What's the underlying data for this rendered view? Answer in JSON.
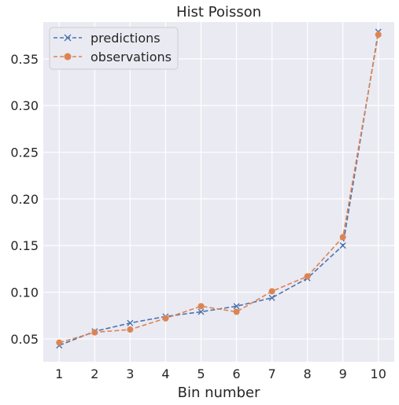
{
  "chart_data": {
    "type": "line",
    "title": "Hist Poisson",
    "xlabel": "Bin number",
    "ylabel": "",
    "x": [
      1,
      2,
      3,
      4,
      5,
      6,
      7,
      8,
      9,
      10
    ],
    "xlim": [
      0.55,
      10.45
    ],
    "ylim": [
      0.0255,
      0.3895
    ],
    "yticks": [
      0.05,
      0.1,
      0.15,
      0.2,
      0.25,
      0.3,
      0.35
    ],
    "ytick_labels": [
      "0.05",
      "0.10",
      "0.15",
      "0.20",
      "0.25",
      "0.30",
      "0.35"
    ],
    "xtick_labels": [
      "1",
      "2",
      "3",
      "4",
      "5",
      "6",
      "7",
      "8",
      "9",
      "10"
    ],
    "grid": true,
    "legend_position": "top-left",
    "series": [
      {
        "name": "predictions",
        "marker": "x",
        "line_style": "dashed",
        "color": "#4c72b0",
        "values": [
          0.043,
          0.058,
          0.067,
          0.074,
          0.079,
          0.085,
          0.094,
          0.115,
          0.15,
          0.379
        ]
      },
      {
        "name": "observations",
        "marker": "circle",
        "line_style": "dashed",
        "color": "#dd8452",
        "values": [
          0.046,
          0.057,
          0.06,
          0.072,
          0.085,
          0.079,
          0.101,
          0.117,
          0.159,
          0.376
        ]
      }
    ]
  },
  "colors": {
    "plot_background": "#eaeaf2",
    "grid": "#ffffff",
    "text": "#262626"
  }
}
